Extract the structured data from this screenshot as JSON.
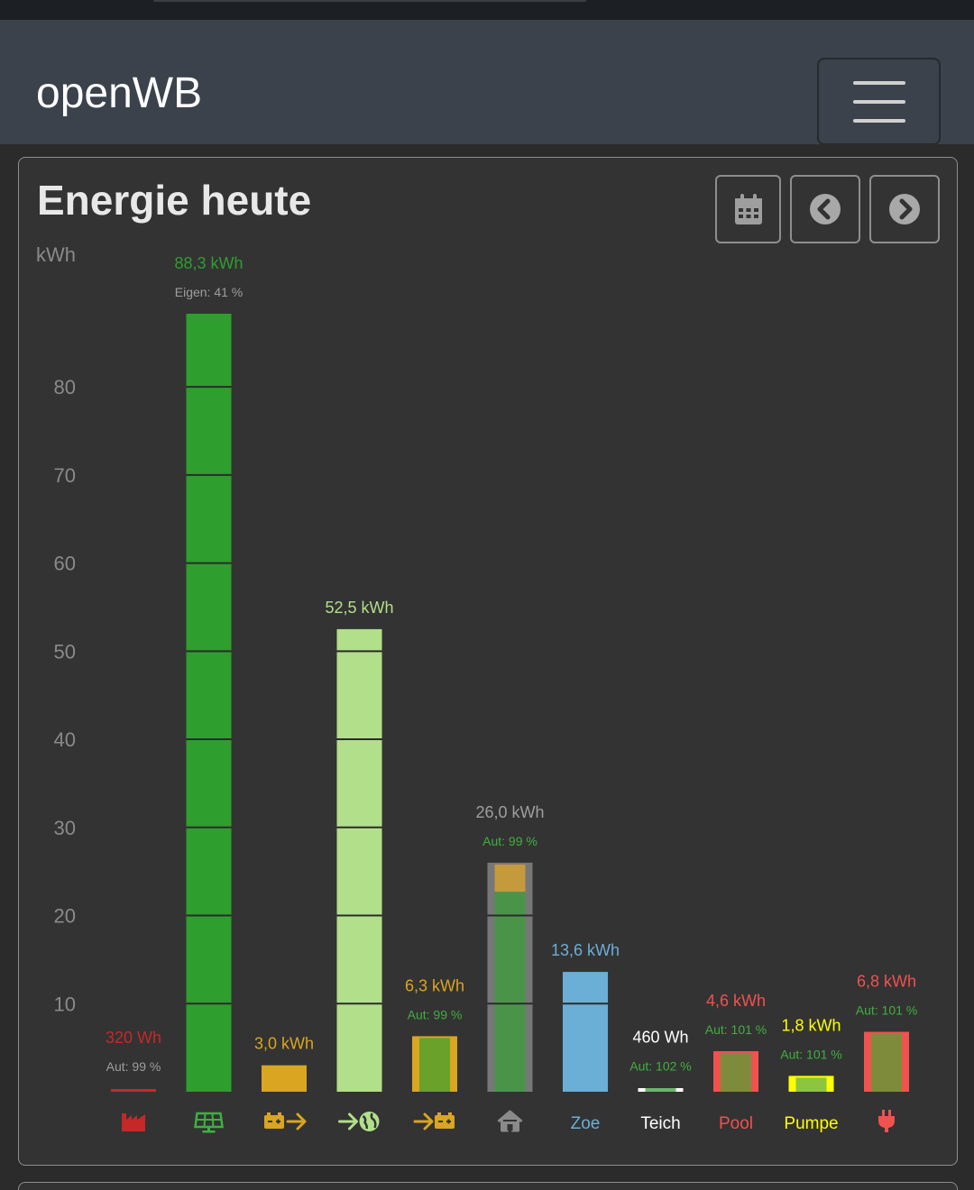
{
  "app": {
    "brand": "openWB"
  },
  "navbar": {
    "toggle_icon": "hamburger-menu-icon"
  },
  "card": {
    "title": "Energie heute",
    "buttons": [
      {
        "name": "date-picker-button",
        "icon": "calendar-icon"
      },
      {
        "name": "previous-day-button",
        "icon": "chevron-left-circle-icon"
      },
      {
        "name": "next-day-button",
        "icon": "chevron-right-circle-icon"
      }
    ]
  },
  "chart_data": {
    "type": "bar",
    "ylabel": "kWh",
    "ylim": [
      0,
      88.3
    ],
    "yticks": [
      10,
      20,
      30,
      40,
      50,
      60,
      70,
      80
    ],
    "grid": false,
    "bars": [
      {
        "key": "grid-import",
        "value": 0.32,
        "label": "320 Wh",
        "subtitle": "Aut: 99 %",
        "color": "#c62828",
        "sub_color": "#9e9e9e",
        "icon": "factory-icon",
        "category": ""
      },
      {
        "key": "pv",
        "value": 88.3,
        "label": "88,3 kWh",
        "subtitle": "Eigen: 41 %",
        "color": "#2e9e2e",
        "sub_color": "#9e9e9e",
        "icon": "solar-panel-icon",
        "category": ""
      },
      {
        "key": "battery-discharge",
        "value": 3.0,
        "label": "3,0 kWh",
        "subtitle": "",
        "color": "#daa520",
        "sub_color": "",
        "icon": "battery-out-icon",
        "category": ""
      },
      {
        "key": "grid-export",
        "value": 52.5,
        "label": "52,5 kWh",
        "subtitle": "",
        "color": "#b2df8a",
        "sub_color": "",
        "icon": "grid-export-icon",
        "category": ""
      },
      {
        "key": "battery-charge",
        "value": 6.3,
        "label": "6,3 kWh",
        "subtitle": "Aut: 99 %",
        "color": "#daa520",
        "sub_color": "#3fb03f",
        "icon": "battery-in-icon",
        "category": ""
      },
      {
        "key": "house",
        "value": 26.0,
        "label": "26,0 kWh",
        "subtitle": "Aut: 99 %",
        "color": "#888888",
        "sub_color": "#3fb03f",
        "icon": "house-icon",
        "category": ""
      },
      {
        "key": "zoe",
        "value": 13.6,
        "label": "13,6 kWh",
        "subtitle": "",
        "color": "#6baed6",
        "sub_color": "",
        "icon": "",
        "category": "Zoe"
      },
      {
        "key": "teich",
        "value": 0.46,
        "label": "460 Wh",
        "subtitle": "Aut: 102 %",
        "color": "#ffffff",
        "sub_color": "#3fb03f",
        "icon": "",
        "category": "Teich"
      },
      {
        "key": "pool",
        "value": 4.6,
        "label": "4,6 kWh",
        "subtitle": "Aut: 101 %",
        "color": "#f0524f",
        "sub_color": "#3fb03f",
        "icon": "",
        "category": "Pool"
      },
      {
        "key": "pumpe",
        "value": 1.8,
        "label": "1,8 kWh",
        "subtitle": "Aut: 101 %",
        "color": "#ffff00",
        "sub_color": "#3fb03f",
        "icon": "",
        "category": "Pumpe"
      },
      {
        "key": "device",
        "value": 6.8,
        "label": "6,8 kWh",
        "subtitle": "Aut: 101 %",
        "color": "#f0524f",
        "sub_color": "#3fb03f",
        "icon": "plug-icon",
        "category": ""
      }
    ]
  }
}
